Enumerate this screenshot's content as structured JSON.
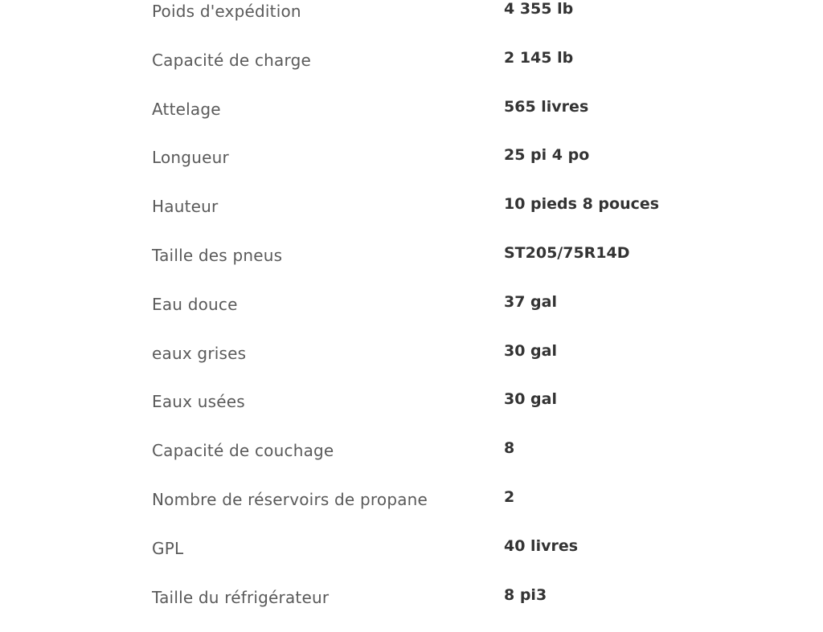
{
  "specs": [
    {
      "label": "Poids d'expédition",
      "value": "4 355 lb"
    },
    {
      "label": "Capacité de charge",
      "value": "2 145 lb"
    },
    {
      "label": "Attelage",
      "value": "565 livres"
    },
    {
      "label": "Longueur",
      "value": "25 pi 4 po"
    },
    {
      "label": "Hauteur",
      "value": "10 pieds 8 pouces"
    },
    {
      "label": "Taille des pneus",
      "value": "ST205/75R14D"
    },
    {
      "label": "Eau douce",
      "value": "37 gal"
    },
    {
      "label": "eaux grises",
      "value": "30 gal"
    },
    {
      "label": "Eaux usées",
      "value": "30 gal"
    },
    {
      "label": "Capacité de couchage",
      "value": "8"
    },
    {
      "label": "Nombre de réservoirs de propane",
      "value": "2"
    },
    {
      "label": "GPL",
      "value": "40 livres"
    },
    {
      "label": "Taille du réfrigérateur",
      "value": "8 pi3"
    }
  ]
}
